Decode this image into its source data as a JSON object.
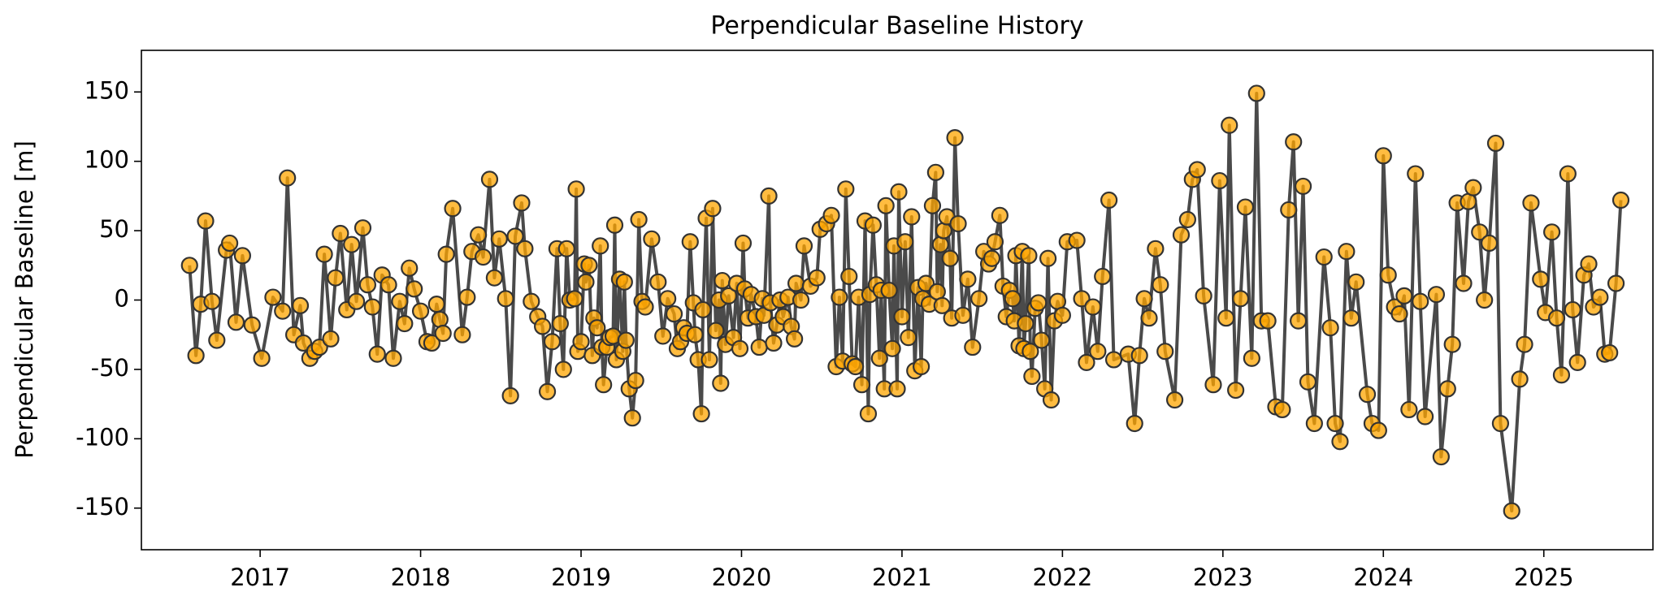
{
  "chart_data": {
    "type": "line",
    "title": "Perpendicular Baseline History",
    "y_label": "Perpendicular Baseline [m]",
    "line_color": "#404040",
    "marker_color": "#ffa500",
    "marker_edge_color": "#333333",
    "xlim": [
      2016.26,
      2025.68
    ],
    "ylim": [
      -180,
      180
    ],
    "xticks": [
      2017,
      2018,
      2019,
      2020,
      2021,
      2022,
      2023,
      2024,
      2025
    ],
    "yticks": [
      -150,
      -100,
      -50,
      0,
      50,
      100,
      150
    ],
    "x": [
      2016.56,
      2016.6,
      2016.63,
      2016.66,
      2016.7,
      2016.73,
      2016.79,
      2016.81,
      2016.85,
      2016.89,
      2016.95,
      2017.01,
      2017.08,
      2017.14,
      2017.17,
      2017.21,
      2017.25,
      2017.27,
      2017.31,
      2017.34,
      2017.37,
      2017.4,
      2017.44,
      2017.47,
      2017.5,
      2017.54,
      2017.57,
      2017.6,
      2017.64,
      2017.67,
      2017.7,
      2017.73,
      2017.76,
      2017.8,
      2017.83,
      2017.87,
      2017.9,
      2017.93,
      2017.96,
      2018.0,
      2018.04,
      2018.07,
      2018.1,
      2018.12,
      2018.14,
      2018.16,
      2018.2,
      2018.26,
      2018.29,
      2018.32,
      2018.36,
      2018.39,
      2018.43,
      2018.46,
      2018.49,
      2018.53,
      2018.56,
      2018.59,
      2018.63,
      2018.65,
      2018.69,
      2018.73,
      2018.76,
      2018.79,
      2018.82,
      2018.85,
      2018.87,
      2018.89,
      2018.91,
      2018.93,
      2018.96,
      2018.97,
      2018.98,
      2019.0,
      2019.02,
      2019.03,
      2019.05,
      2019.07,
      2019.08,
      2019.1,
      2019.12,
      2019.13,
      2019.14,
      2019.16,
      2019.18,
      2019.2,
      2019.21,
      2019.22,
      2019.24,
      2019.26,
      2019.27,
      2019.28,
      2019.3,
      2019.32,
      2019.34,
      2019.36,
      2019.38,
      2019.4,
      2019.44,
      2019.48,
      2019.51,
      2019.54,
      2019.58,
      2019.6,
      2019.62,
      2019.64,
      2019.66,
      2019.68,
      2019.7,
      2019.71,
      2019.73,
      2019.75,
      2019.76,
      2019.78,
      2019.8,
      2019.82,
      2019.84,
      2019.86,
      2019.87,
      2019.88,
      2019.9,
      2019.92,
      2019.95,
      2019.97,
      2019.99,
      2020.01,
      2020.02,
      2020.04,
      2020.06,
      2020.09,
      2020.11,
      2020.13,
      2020.14,
      2020.17,
      2020.18,
      2020.2,
      2020.22,
      2020.24,
      2020.26,
      2020.29,
      2020.31,
      2020.33,
      2020.34,
      2020.37,
      2020.39,
      2020.43,
      2020.47,
      2020.49,
      2020.53,
      2020.56,
      2020.59,
      2020.61,
      2020.63,
      2020.65,
      2020.67,
      2020.69,
      2020.71,
      2020.73,
      2020.75,
      2020.77,
      2020.79,
      2020.8,
      2020.82,
      2020.84,
      2020.86,
      2020.87,
      2020.89,
      2020.9,
      2020.92,
      2020.94,
      2020.95,
      2020.97,
      2020.98,
      2021.0,
      2021.02,
      2021.04,
      2021.06,
      2021.08,
      2021.1,
      2021.12,
      2021.13,
      2021.15,
      2021.17,
      2021.19,
      2021.21,
      2021.22,
      2021.24,
      2021.25,
      2021.26,
      2021.28,
      2021.3,
      2021.31,
      2021.33,
      2021.35,
      2021.38,
      2021.41,
      2021.44,
      2021.48,
      2021.51,
      2021.54,
      2021.56,
      2021.58,
      2021.61,
      2021.63,
      2021.65,
      2021.67,
      2021.69,
      2021.7,
      2021.71,
      2021.73,
      2021.75,
      2021.76,
      2021.77,
      2021.79,
      2021.8,
      2021.81,
      2021.83,
      2021.85,
      2021.87,
      2021.89,
      2021.91,
      2021.93,
      2021.95,
      2021.97,
      2022.0,
      2022.03,
      2022.09,
      2022.12,
      2022.15,
      2022.19,
      2022.22,
      2022.25,
      2022.29,
      2022.32,
      2022.41,
      2022.45,
      2022.48,
      2022.51,
      2022.54,
      2022.58,
      2022.61,
      2022.64,
      2022.7,
      2022.74,
      2022.78,
      2022.81,
      2022.84,
      2022.88,
      2022.94,
      2022.98,
      2023.02,
      2023.04,
      2023.08,
      2023.11,
      2023.14,
      2023.18,
      2023.21,
      2023.24,
      2023.28,
      2023.33,
      2023.37,
      2023.41,
      2023.44,
      2023.47,
      2023.5,
      2023.53,
      2023.57,
      2023.63,
      2023.67,
      2023.7,
      2023.73,
      2023.77,
      2023.8,
      2023.83,
      2023.9,
      2023.93,
      2023.97,
      2024.0,
      2024.03,
      2024.07,
      2024.1,
      2024.13,
      2024.16,
      2024.2,
      2024.23,
      2024.26,
      2024.33,
      2024.36,
      2024.4,
      2024.43,
      2024.46,
      2024.5,
      2024.53,
      2024.56,
      2024.6,
      2024.63,
      2024.66,
      2024.7,
      2024.73,
      2024.8,
      2024.85,
      2024.88,
      2024.92,
      2024.98,
      2025.01,
      2025.05,
      2025.08,
      2025.11,
      2025.15,
      2025.18,
      2025.21,
      2025.25,
      2025.28,
      2025.31,
      2025.35,
      2025.38,
      2025.41,
      2025.45,
      2025.48
    ],
    "values": [
      25,
      -40,
      -3,
      57,
      -1,
      -29,
      36,
      41,
      -16,
      32,
      -18,
      -42,
      2,
      -8,
      88,
      -25,
      -4,
      -31,
      -42,
      -37,
      -34,
      33,
      -28,
      16,
      48,
      -7,
      40,
      -1,
      52,
      11,
      -5,
      -39,
      18,
      11,
      -42,
      -1,
      -17,
      23,
      8,
      -8,
      -30,
      -31,
      -3,
      -14,
      -24,
      33,
      66,
      -25,
      2,
      35,
      47,
      31,
      87,
      16,
      44,
      1,
      -69,
      46,
      70,
      37,
      -1,
      -12,
      -19,
      -66,
      -30,
      37,
      -17,
      -50,
      37,
      0,
      1,
      80,
      -37,
      -30,
      26,
      13,
      25,
      -40,
      -13,
      -20,
      39,
      -34,
      -61,
      -34,
      -27,
      -26,
      54,
      -43,
      15,
      -37,
      13,
      -29,
      -64,
      -85,
      -58,
      58,
      -1,
      -5,
      44,
      13,
      -26,
      1,
      -10,
      -35,
      -30,
      -20,
      -24,
      42,
      -2,
      -25,
      -43,
      -82,
      -7,
      59,
      -43,
      66,
      -22,
      0,
      -60,
      14,
      -32,
      3,
      -27,
      12,
      -35,
      41,
      8,
      -13,
      4,
      -12,
      -34,
      1,
      -11,
      75,
      -2,
      -31,
      -18,
      0,
      -12,
      2,
      -19,
      -28,
      12,
      0,
      39,
      10,
      16,
      51,
      55,
      61,
      -48,
      2,
      -44,
      80,
      17,
      -46,
      -48,
      2,
      -61,
      57,
      -82,
      4,
      54,
      11,
      -42,
      7,
      -64,
      68,
      7,
      -35,
      39,
      -64,
      78,
      -12,
      42,
      -27,
      60,
      -51,
      9,
      -48,
      1,
      12,
      -3,
      68,
      92,
      6,
      40,
      -4,
      50,
      60,
      30,
      -13,
      117,
      55,
      -11,
      15,
      -34,
      1,
      35,
      26,
      30,
      42,
      61,
      10,
      -12,
      7,
      1,
      -15,
      32,
      -33,
      35,
      -35,
      -17,
      32,
      -37,
      -55,
      -6,
      -2,
      -29,
      -64,
      30,
      -72,
      -15,
      -1,
      -11,
      42,
      43,
      1,
      -45,
      -5,
      -37,
      17,
      72,
      -43,
      -39,
      -89,
      -40,
      1,
      -13,
      37,
      11,
      -37,
      -72,
      47,
      58,
      87,
      94,
      3,
      -61,
      86,
      -13,
      126,
      -65,
      1,
      67,
      -42,
      149,
      -15,
      -15,
      -77,
      -79,
      65,
      114,
      -15,
      82,
      -59,
      -89,
      31,
      -20,
      -89,
      -102,
      35,
      -13,
      13,
      -68,
      -89,
      -94,
      104,
      18,
      -5,
      -10,
      3,
      -79,
      91,
      -1,
      -84,
      4,
      -113,
      -64,
      -32,
      70,
      12,
      71,
      81,
      49,
      0,
      41,
      113,
      -89,
      -152,
      -57,
      -32,
      70,
      15,
      -9,
      49,
      -13,
      -54,
      91,
      -7,
      -45,
      18,
      26,
      -5,
      2,
      -39,
      -38,
      12,
      72
    ]
  }
}
